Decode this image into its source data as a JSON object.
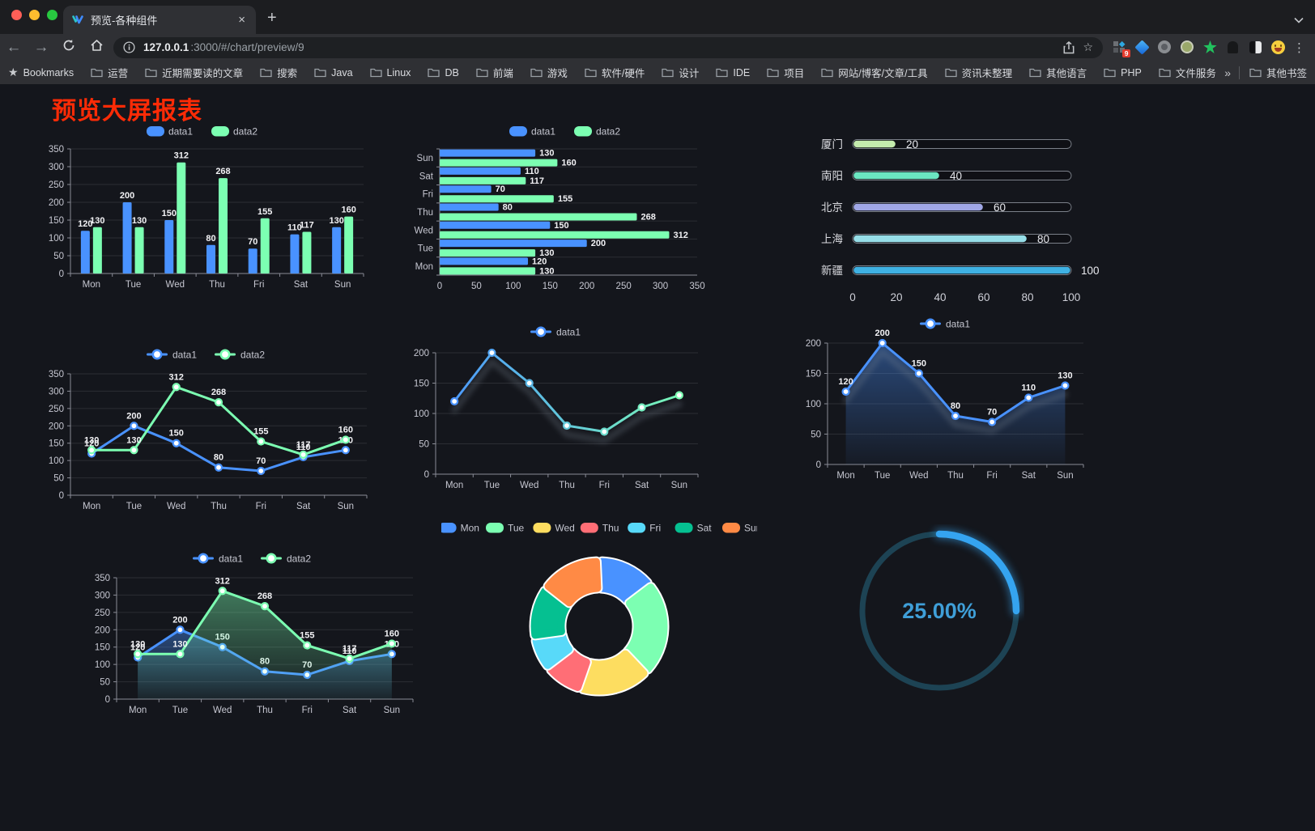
{
  "browser": {
    "tab_title": "预览-各种组件",
    "tab_close": "×",
    "new_tab": "+",
    "url_host": "127.0.0.1",
    "url_rest": ":3000/#/chart/preview/9",
    "extension_badge": "9",
    "menu_dots": "⋮",
    "bookmarks_root": "Bookmarks",
    "bookmarks": [
      "运营",
      "近期需要读的文章",
      "搜索",
      "Java",
      "Linux",
      "DB",
      "前端",
      "游戏",
      "软件/硬件",
      "设计",
      "IDE",
      "项目",
      "网站/博客/文章/工具",
      "资讯未整理",
      "其他语言",
      "PHP",
      "文件服务器"
    ],
    "bookmarks_overflow": "»",
    "other_bookmarks": "其他书签"
  },
  "page": {
    "title": "预览大屏报表",
    "title_color": "#fe2b06",
    "background": "#14161c"
  },
  "chart_data": [
    {
      "id": "bar-grouped",
      "type": "bar",
      "categories": [
        "Mon",
        "Tue",
        "Wed",
        "Thu",
        "Fri",
        "Sat",
        "Sun"
      ],
      "series": [
        {
          "name": "data1",
          "color": "#4992ff",
          "values": [
            120,
            200,
            150,
            80,
            70,
            110,
            130
          ]
        },
        {
          "name": "data2",
          "color": "#7cffb2",
          "values": [
            130,
            130,
            312,
            268,
            155,
            117,
            160
          ]
        }
      ],
      "ylim": [
        0,
        350
      ],
      "ystep": 50,
      "labels": true,
      "legend": "rect",
      "grid": true
    },
    {
      "id": "bar-horizontal",
      "type": "hbar",
      "categories": [
        "Mon",
        "Tue",
        "Wed",
        "Thu",
        "Fri",
        "Sat",
        "Sun"
      ],
      "series": [
        {
          "name": "data1",
          "color": "#4992ff",
          "values": [
            120,
            200,
            150,
            80,
            70,
            110,
            130
          ]
        },
        {
          "name": "data2",
          "color": "#7cffb2",
          "values": [
            130,
            130,
            312,
            268,
            155,
            117,
            160
          ]
        }
      ],
      "xlim": [
        0,
        350
      ],
      "xstep": 50,
      "labels": true,
      "legend": "rect"
    },
    {
      "id": "progress-bars",
      "type": "progress",
      "rows": [
        {
          "label": "厦门",
          "value": 20,
          "color": "#c4ebad"
        },
        {
          "label": "南阳",
          "value": 40,
          "color": "#6be6c1"
        },
        {
          "label": "北京",
          "value": 60,
          "color": "#a0a7e6"
        },
        {
          "label": "上海",
          "value": 80,
          "color": "#96dee8"
        },
        {
          "label": "新疆",
          "value": 100,
          "color": "#3fb1e3"
        }
      ],
      "xlim": [
        0,
        100
      ],
      "xticks": [
        0,
        20,
        40,
        60,
        80,
        100
      ]
    },
    {
      "id": "line-dual",
      "type": "line",
      "categories": [
        "Mon",
        "Tue",
        "Wed",
        "Thu",
        "Fri",
        "Sat",
        "Sun"
      ],
      "series": [
        {
          "name": "data1",
          "color": "#4992ff",
          "values": [
            120,
            200,
            150,
            80,
            70,
            110,
            130
          ]
        },
        {
          "name": "data2",
          "color": "#7cffb2",
          "values": [
            130,
            130,
            312,
            268,
            155,
            117,
            160
          ]
        }
      ],
      "ylim": [
        0,
        350
      ],
      "ystep": 50,
      "labels": true,
      "area": false,
      "legend": "marker"
    },
    {
      "id": "line-gradient",
      "type": "line",
      "categories": [
        "Mon",
        "Tue",
        "Wed",
        "Thu",
        "Fri",
        "Sat",
        "Sun"
      ],
      "series": [
        {
          "name": "data1",
          "gradient": [
            "#4992ff",
            "#7cffb2"
          ],
          "values": [
            120,
            200,
            150,
            80,
            70,
            110,
            130
          ]
        }
      ],
      "ylim": [
        0,
        200
      ],
      "ystep": 50,
      "labels": false,
      "area": false,
      "shadow": true,
      "legend": "marker"
    },
    {
      "id": "area-single",
      "type": "line",
      "categories": [
        "Mon",
        "Tue",
        "Wed",
        "Thu",
        "Fri",
        "Sat",
        "Sun"
      ],
      "series": [
        {
          "name": "data1",
          "color": "#4992ff",
          "values": [
            120,
            200,
            150,
            80,
            70,
            110,
            130
          ]
        }
      ],
      "ylim": [
        0,
        200
      ],
      "ystep": 50,
      "labels": true,
      "area": true,
      "shadow": true,
      "legend": "marker"
    },
    {
      "id": "area-dual",
      "type": "line",
      "categories": [
        "Mon",
        "Tue",
        "Wed",
        "Thu",
        "Fri",
        "Sat",
        "Sun"
      ],
      "series": [
        {
          "name": "data1",
          "color": "#4992ff",
          "values": [
            120,
            200,
            150,
            80,
            70,
            110,
            130
          ]
        },
        {
          "name": "data2",
          "color": "#7cffb2",
          "values": [
            130,
            130,
            312,
            268,
            155,
            117,
            160
          ]
        }
      ],
      "ylim": [
        0,
        350
      ],
      "ystep": 50,
      "labels": true,
      "area": true,
      "legend": "marker"
    },
    {
      "id": "donut",
      "type": "pie",
      "categories": [
        "Mon",
        "Tue",
        "Wed",
        "Thu",
        "Fri",
        "Sat",
        "Sun"
      ],
      "values": [
        120,
        200,
        150,
        80,
        70,
        110,
        130
      ],
      "colors": [
        "#4992ff",
        "#7cffb2",
        "#fddd60",
        "#ff6e76",
        "#58d9f9",
        "#05c091",
        "#ff8a45"
      ],
      "legend": "rect"
    },
    {
      "id": "gauge",
      "type": "gauge",
      "value": 25,
      "label": "25.00%",
      "color": "#35a4f0",
      "track": "#1d4354",
      "text_color": "#3f9fd8"
    }
  ],
  "style": {
    "axis_label": "#c6c7d1",
    "grid_line": "rgba(255,255,255,0.10)",
    "axis_line": "#8a8c96",
    "data_label": "#f2f2f5",
    "legend_text": "#c6c7d1"
  }
}
